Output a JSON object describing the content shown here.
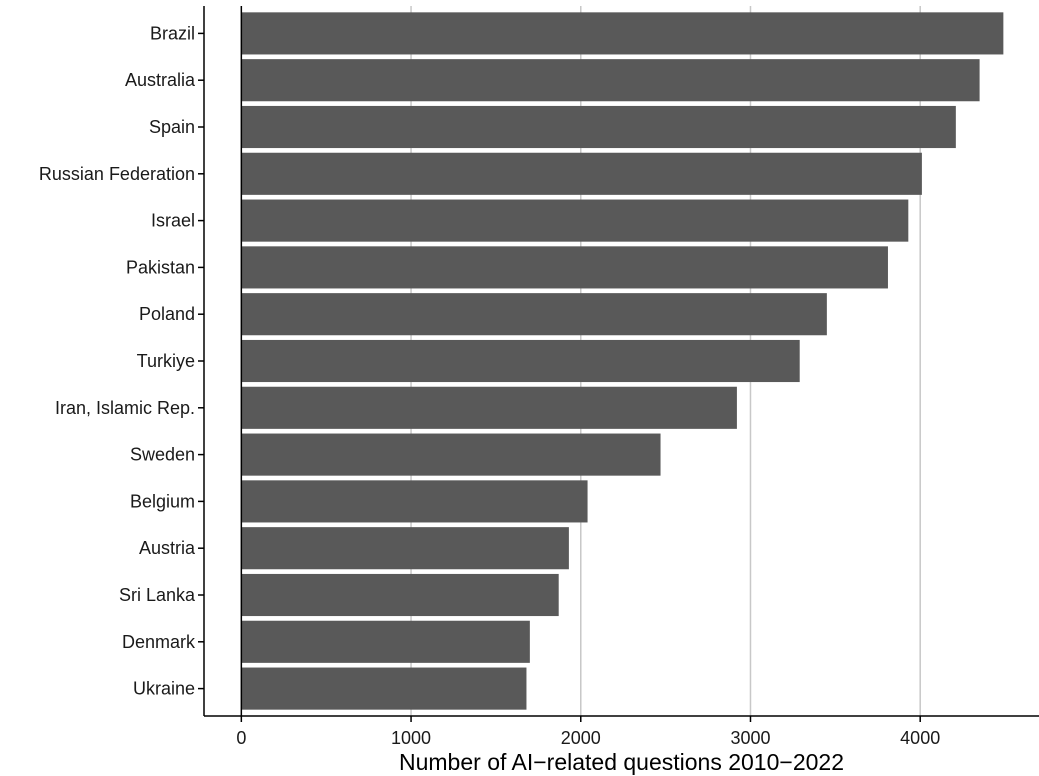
{
  "chart_data": {
    "type": "bar",
    "orientation": "horizontal",
    "categories": [
      "Brazil",
      "Australia",
      "Spain",
      "Russian Federation",
      "Israel",
      "Pakistan",
      "Poland",
      "Turkiye",
      "Iran, Islamic Rep.",
      "Sweden",
      "Belgium",
      "Austria",
      "Sri Lanka",
      "Denmark",
      "Ukraine"
    ],
    "values": [
      4490,
      4350,
      4210,
      4010,
      3930,
      3810,
      3450,
      3290,
      2920,
      2470,
      2040,
      1930,
      1870,
      1700,
      1680
    ],
    "xlabel": "Number of AI−related questions 2010−2022",
    "xlim": [
      -220,
      4700
    ],
    "xticks": [
      0,
      1000,
      2000,
      3000,
      4000
    ],
    "xtick_labels": [
      "0",
      "1000",
      "2000",
      "3000",
      "4000"
    ],
    "grid": "vertical major",
    "bar_color": "#595959",
    "grid_color": "#c8c8c8"
  }
}
